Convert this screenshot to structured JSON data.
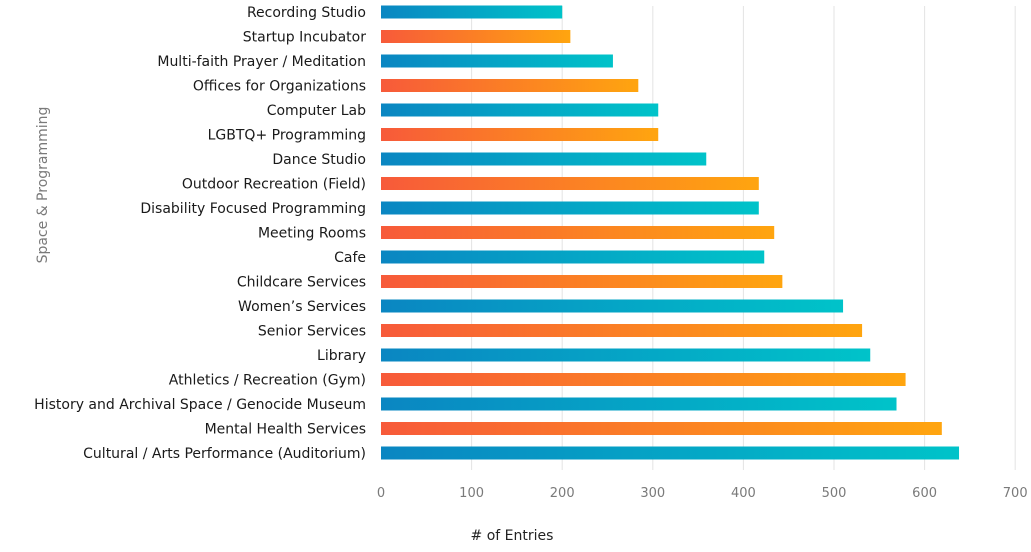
{
  "chart_data": {
    "type": "bar",
    "orientation": "horizontal",
    "xlabel": "# of Entries",
    "ylabel": "Space & Programming",
    "xlim": [
      0,
      700
    ],
    "xticks": [
      0,
      100,
      200,
      300,
      400,
      500,
      600,
      700
    ],
    "grid": "vertical",
    "colors": {
      "blue_gradient": [
        "#0a86c2",
        "#00c3c9"
      ],
      "orange_gradient": [
        "#f75a3a",
        "#ffa50f"
      ]
    },
    "categories": [
      "Recording Studio",
      "Startup Incubator",
      "Multi-faith Prayer / Meditation",
      "Offices for Organizations",
      "Computer Lab",
      "LGBTQ+ Programming",
      "Dance Studio",
      "Outdoor Recreation (Field)",
      "Disability Focused Programming",
      "Meeting Rooms",
      "Cafe",
      "Childcare Services",
      "Women’s Services",
      "Senior Services",
      "Library",
      "Athletics / Recreation (Gym)",
      "History and Archival Space / Genocide Museum",
      "Mental Health Services",
      "Cultural / Arts Performance (Auditorium)"
    ],
    "values": [
      200,
      209,
      256,
      284,
      306,
      306,
      359,
      417,
      417,
      434,
      423,
      443,
      510,
      531,
      540,
      579,
      569,
      619,
      638
    ],
    "bar_colors": [
      "blue",
      "orange",
      "blue",
      "orange",
      "blue",
      "orange",
      "blue",
      "orange",
      "blue",
      "orange",
      "blue",
      "orange",
      "blue",
      "orange",
      "blue",
      "orange",
      "blue",
      "orange",
      "blue"
    ]
  }
}
